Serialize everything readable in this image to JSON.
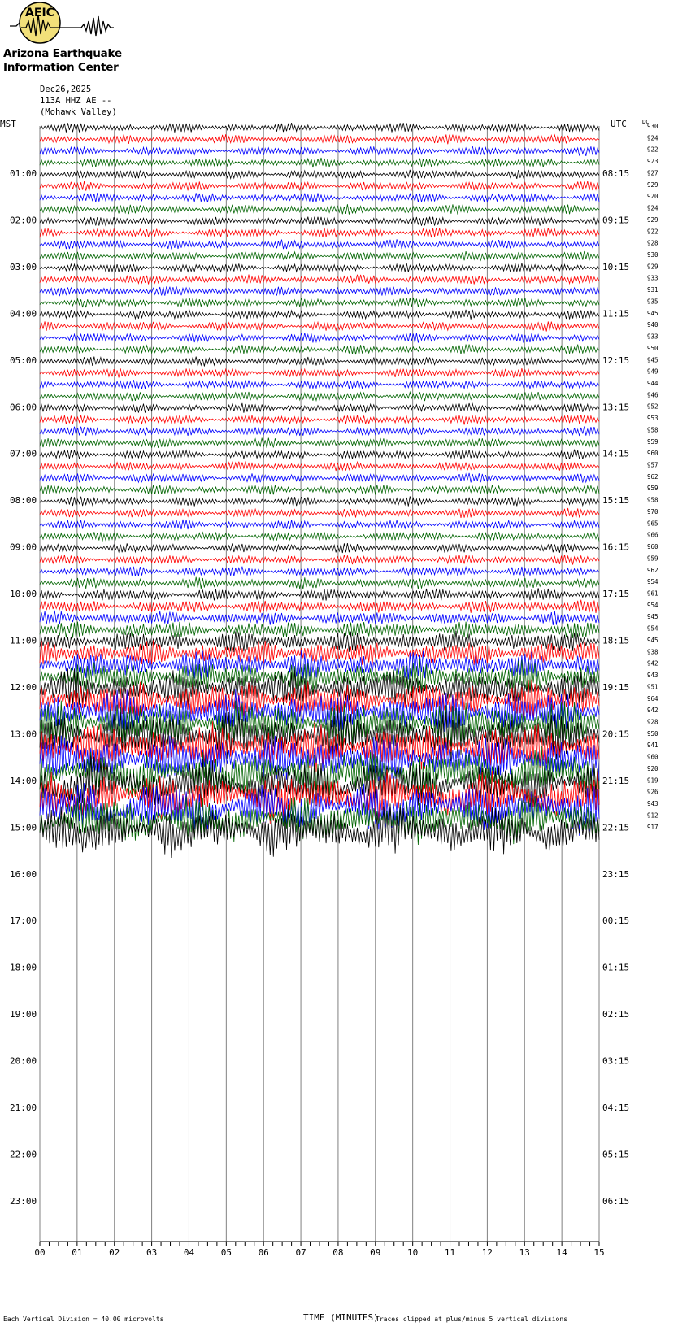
{
  "logo": {
    "acronym": "AEIC",
    "title": "Arizona Earthquake",
    "subtitle": "Information Center"
  },
  "header": {
    "date": "Dec26,2025",
    "channel": "113A HHZ AE --",
    "location": "(Mohawk Valley)"
  },
  "axis": {
    "left_label": "MST",
    "right_label": "UTC",
    "dc_label": "DC",
    "x_label": "TIME (MINUTES)",
    "left_hours": [
      "01:00",
      "02:00",
      "03:00",
      "04:00",
      "05:00",
      "06:00",
      "07:00",
      "08:00",
      "09:00",
      "10:00",
      "11:00",
      "12:00",
      "13:00",
      "14:00",
      "15:00",
      "16:00",
      "17:00",
      "18:00",
      "19:00",
      "20:00",
      "21:00",
      "22:00",
      "23:00"
    ],
    "right_hours": [
      "08:15",
      "09:15",
      "10:15",
      "11:15",
      "12:15",
      "13:15",
      "14:15",
      "15:15",
      "16:15",
      "17:15",
      "18:15",
      "19:15",
      "20:15",
      "21:15",
      "22:15",
      "23:15",
      "00:15",
      "01:15",
      "02:15",
      "03:15",
      "04:15",
      "05:15",
      "06:15"
    ],
    "x_ticks": [
      "00",
      "01",
      "02",
      "03",
      "04",
      "05",
      "06",
      "07",
      "08",
      "09",
      "10",
      "11",
      "12",
      "13",
      "14",
      "15"
    ]
  },
  "footer": {
    "division_note": "Each Vertical Division =   40.00 microvolts",
    "clip_note": "Traces clipped at plus/minus 5 vertical divisions"
  },
  "colors": {
    "trace_cycle": [
      "#000000",
      "#ff0000",
      "#0000ff",
      "#006400"
    ],
    "grid": "#808080"
  },
  "chart_data": {
    "type": "line",
    "title": "",
    "xlabel": "TIME (MINUTES)",
    "ylabel": "",
    "xlim": [
      0,
      15
    ],
    "rows_per_hour": 4,
    "trace_count": 61,
    "dc_offsets": [
      930,
      924,
      922,
      923,
      927,
      929,
      920,
      924,
      929,
      922,
      928,
      930,
      929,
      933,
      931,
      935,
      945,
      940,
      933,
      950,
      945,
      949,
      944,
      946,
      952,
      953,
      958,
      959,
      960,
      957,
      962,
      959,
      958,
      970,
      965,
      966,
      960,
      959,
      962,
      954,
      961,
      954,
      945,
      954,
      945,
      938,
      942,
      943,
      951,
      964,
      942,
      928,
      950,
      941,
      960,
      920,
      919,
      926,
      943,
      912,
      917
    ],
    "amplitude_trend": [
      1,
      1,
      1,
      1,
      1,
      1,
      1,
      1,
      1,
      1,
      1,
      1,
      1,
      1,
      1,
      1,
      1,
      1,
      1,
      1,
      1,
      1,
      1,
      1,
      1,
      1,
      1,
      1,
      1,
      1,
      1,
      1,
      1,
      1,
      1,
      1,
      1,
      1,
      1.1,
      1.2,
      1.3,
      1.4,
      1.5,
      1.8,
      2.2,
      2.6,
      3,
      3.4,
      3.8,
      4.2,
      4.6,
      5,
      5,
      5,
      5,
      5,
      5,
      5,
      5,
      5,
      5
    ]
  }
}
